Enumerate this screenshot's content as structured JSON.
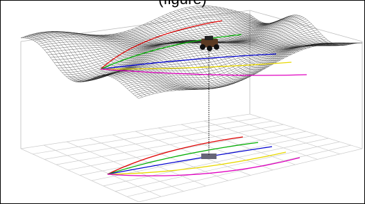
{
  "caption": "(figure)"
}
